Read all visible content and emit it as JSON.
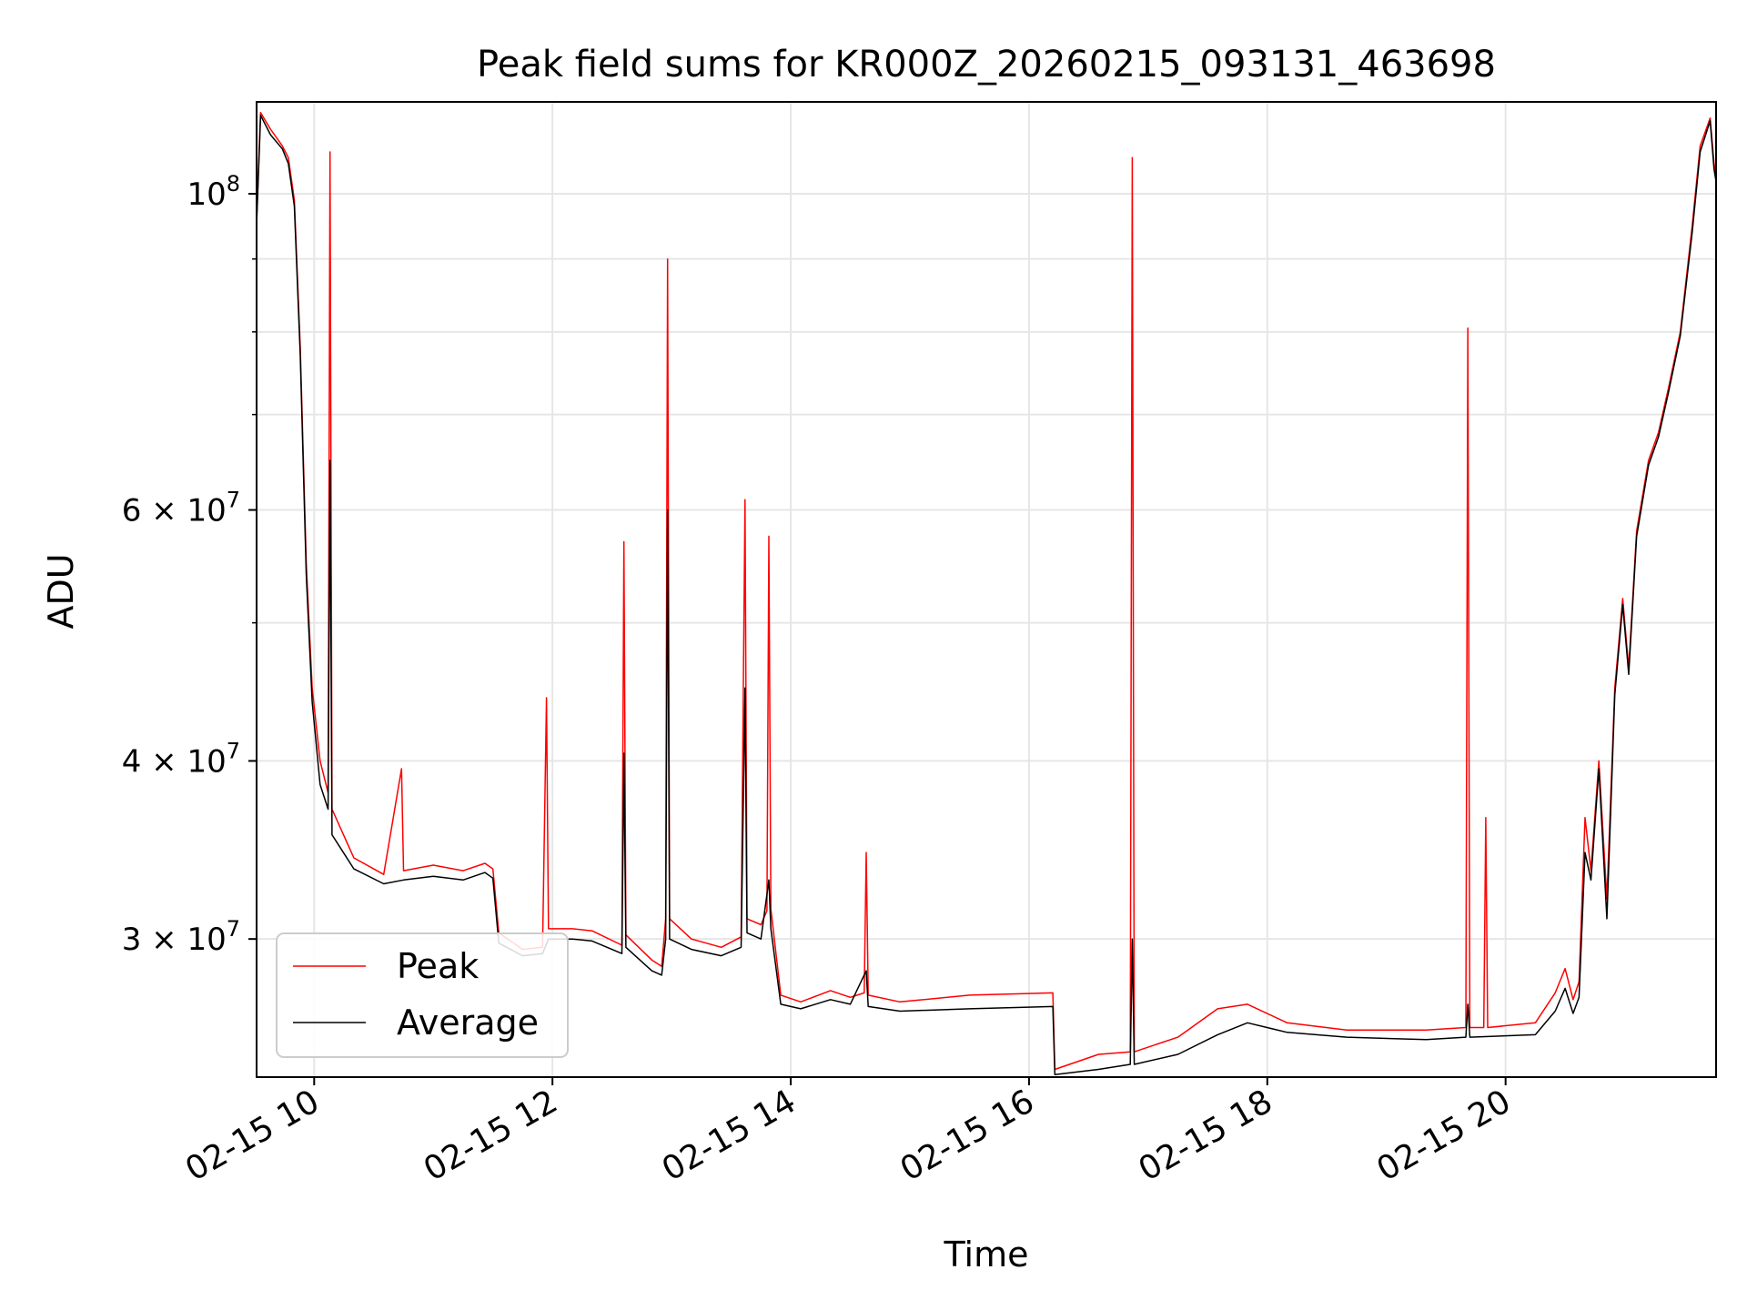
{
  "chart_data": {
    "type": "line",
    "title": "Peak field sums for KR000Z_20260215_093131_463698",
    "xlabel": "Time",
    "ylabel": "ADU",
    "y_scale": "log",
    "ylim": [
      24000000,
      116000000
    ],
    "xlim": [
      "2026-02-15T09:31",
      "2026-02-15T21:46"
    ],
    "grid": true,
    "legend_position": "lower-left",
    "x_ticks": [
      {
        "t": "2026-02-15T10:00",
        "label": "02-15 10"
      },
      {
        "t": "2026-02-15T12:00",
        "label": "02-15 12"
      },
      {
        "t": "2026-02-15T14:00",
        "label": "02-15 14"
      },
      {
        "t": "2026-02-15T16:00",
        "label": "02-15 16"
      },
      {
        "t": "2026-02-15T18:00",
        "label": "02-15 18"
      },
      {
        "t": "2026-02-15T20:00",
        "label": "02-15 20"
      }
    ],
    "y_major_ticks": [
      {
        "v": 30000000,
        "label": "3 × 10⁷",
        "mantissa": "3",
        "exp": "7"
      },
      {
        "v": 40000000,
        "label": "4 × 10⁷",
        "mantissa": "4",
        "exp": "7"
      },
      {
        "v": 60000000,
        "label": "6 × 10⁷",
        "mantissa": "6",
        "exp": "7"
      },
      {
        "v": 100000000,
        "label": "10⁸",
        "mantissa": "",
        "exp": "8"
      }
    ],
    "y_minor_grid": [
      50000000,
      70000000,
      80000000,
      90000000
    ],
    "series": [
      {
        "name": "Peak",
        "color": "#ff0000",
        "points": [
          [
            "2026-02-15T09:31",
            96000000
          ],
          [
            "2026-02-15T09:33",
            114000000
          ],
          [
            "2026-02-15T09:38",
            111000000
          ],
          [
            "2026-02-15T09:44",
            108000000
          ],
          [
            "2026-02-15T09:47",
            106000000
          ],
          [
            "2026-02-15T09:50",
            99000000
          ],
          [
            "2026-02-15T09:53",
            78000000
          ],
          [
            "2026-02-15T09:56",
            55000000
          ],
          [
            "2026-02-15T09:59",
            45000000
          ],
          [
            "2026-02-15T10:03",
            40000000
          ],
          [
            "2026-02-15T10:07",
            38000000
          ],
          [
            "2026-02-15T10:08",
            107000000
          ],
          [
            "2026-02-15T10:09",
            37000000
          ],
          [
            "2026-02-15T10:20",
            34200000
          ],
          [
            "2026-02-15T10:35",
            33300000
          ],
          [
            "2026-02-15T10:44",
            39500000
          ],
          [
            "2026-02-15T10:45",
            33500000
          ],
          [
            "2026-02-15T11:00",
            33800000
          ],
          [
            "2026-02-15T11:15",
            33500000
          ],
          [
            "2026-02-15T11:26",
            33900000
          ],
          [
            "2026-02-15T11:30",
            33600000
          ],
          [
            "2026-02-15T11:33",
            30300000
          ],
          [
            "2026-02-15T11:45",
            29500000
          ],
          [
            "2026-02-15T11:55",
            29600000
          ],
          [
            "2026-02-15T11:57",
            44300000
          ],
          [
            "2026-02-15T11:58",
            30500000
          ],
          [
            "2026-02-15T12:10",
            30500000
          ],
          [
            "2026-02-15T12:20",
            30400000
          ],
          [
            "2026-02-15T12:35",
            29700000
          ],
          [
            "2026-02-15T12:36",
            57000000
          ],
          [
            "2026-02-15T12:37",
            30200000
          ],
          [
            "2026-02-15T12:50",
            29000000
          ],
          [
            "2026-02-15T12:55",
            28700000
          ],
          [
            "2026-02-15T12:57",
            31000000
          ],
          [
            "2026-02-15T12:58",
            90000000
          ],
          [
            "2026-02-15T12:59",
            31000000
          ],
          [
            "2026-02-15T13:10",
            30000000
          ],
          [
            "2026-02-15T13:25",
            29600000
          ],
          [
            "2026-02-15T13:35",
            30100000
          ],
          [
            "2026-02-15T13:37",
            61000000
          ],
          [
            "2026-02-15T13:38",
            31000000
          ],
          [
            "2026-02-15T13:45",
            30700000
          ],
          [
            "2026-02-15T13:48",
            31400000
          ],
          [
            "2026-02-15T13:49",
            57500000
          ],
          [
            "2026-02-15T13:50",
            31500000
          ],
          [
            "2026-02-15T13:55",
            27400000
          ],
          [
            "2026-02-15T14:05",
            27100000
          ],
          [
            "2026-02-15T14:20",
            27600000
          ],
          [
            "2026-02-15T14:30",
            27300000
          ],
          [
            "2026-02-15T14:37",
            27500000
          ],
          [
            "2026-02-15T14:38",
            34500000
          ],
          [
            "2026-02-15T14:39",
            27400000
          ],
          [
            "2026-02-15T14:55",
            27100000
          ],
          [
            "2026-02-15T15:30",
            27400000
          ],
          [
            "2026-02-15T16:12",
            27500000
          ],
          [
            "2026-02-15T16:13",
            24300000
          ],
          [
            "2026-02-15T16:35",
            24900000
          ],
          [
            "2026-02-15T16:51",
            25000000
          ],
          [
            "2026-02-15T16:52",
            106000000
          ],
          [
            "2026-02-15T16:53",
            25000000
          ],
          [
            "2026-02-15T17:15",
            25600000
          ],
          [
            "2026-02-15T17:35",
            26800000
          ],
          [
            "2026-02-15T17:50",
            27000000
          ],
          [
            "2026-02-15T18:10",
            26200000
          ],
          [
            "2026-02-15T18:40",
            25900000
          ],
          [
            "2026-02-15T19:20",
            25900000
          ],
          [
            "2026-02-15T19:40",
            26000000
          ],
          [
            "2026-02-15T19:41",
            80500000
          ],
          [
            "2026-02-15T19:42",
            26000000
          ],
          [
            "2026-02-15T19:49",
            26000000
          ],
          [
            "2026-02-15T19:50",
            36500000
          ],
          [
            "2026-02-15T19:51",
            26000000
          ],
          [
            "2026-02-15T20:15",
            26200000
          ],
          [
            "2026-02-15T20:25",
            27500000
          ],
          [
            "2026-02-15T20:30",
            28600000
          ],
          [
            "2026-02-15T20:34",
            27200000
          ],
          [
            "2026-02-15T20:37",
            28000000
          ],
          [
            "2026-02-15T20:40",
            36500000
          ],
          [
            "2026-02-15T20:43",
            33500000
          ],
          [
            "2026-02-15T20:47",
            40000000
          ],
          [
            "2026-02-15T20:51",
            32000000
          ],
          [
            "2026-02-15T20:55",
            45000000
          ],
          [
            "2026-02-15T20:59",
            52000000
          ],
          [
            "2026-02-15T21:02",
            46500000
          ],
          [
            "2026-02-15T21:06",
            58000000
          ],
          [
            "2026-02-15T21:12",
            65000000
          ],
          [
            "2026-02-15T21:17",
            68000000
          ],
          [
            "2026-02-15T21:22",
            73000000
          ],
          [
            "2026-02-15T21:28",
            80000000
          ],
          [
            "2026-02-15T21:34",
            95000000
          ],
          [
            "2026-02-15T21:38",
            108000000
          ],
          [
            "2026-02-15T21:43",
            113000000
          ],
          [
            "2026-02-15T21:45",
            105000000
          ],
          [
            "2026-02-15T21:46",
            103000000
          ]
        ]
      },
      {
        "name": "Average",
        "color": "#000000",
        "points": [
          [
            "2026-02-15T09:31",
            95000000
          ],
          [
            "2026-02-15T09:33",
            113500000
          ],
          [
            "2026-02-15T09:38",
            110000000
          ],
          [
            "2026-02-15T09:44",
            107500000
          ],
          [
            "2026-02-15T09:47",
            105000000
          ],
          [
            "2026-02-15T09:50",
            98000000
          ],
          [
            "2026-02-15T09:53",
            77000000
          ],
          [
            "2026-02-15T09:56",
            54000000
          ],
          [
            "2026-02-15T09:59",
            44000000
          ],
          [
            "2026-02-15T10:03",
            38500000
          ],
          [
            "2026-02-15T10:07",
            37000000
          ],
          [
            "2026-02-15T10:08",
            65000000
          ],
          [
            "2026-02-15T10:09",
            35500000
          ],
          [
            "2026-02-15T10:20",
            33600000
          ],
          [
            "2026-02-15T10:35",
            32800000
          ],
          [
            "2026-02-15T10:45",
            33000000
          ],
          [
            "2026-02-15T11:00",
            33200000
          ],
          [
            "2026-02-15T11:15",
            33000000
          ],
          [
            "2026-02-15T11:26",
            33400000
          ],
          [
            "2026-02-15T11:30",
            33100000
          ],
          [
            "2026-02-15T11:33",
            29800000
          ],
          [
            "2026-02-15T11:45",
            29200000
          ],
          [
            "2026-02-15T11:55",
            29300000
          ],
          [
            "2026-02-15T11:58",
            30000000
          ],
          [
            "2026-02-15T12:10",
            30000000
          ],
          [
            "2026-02-15T12:20",
            29900000
          ],
          [
            "2026-02-15T12:35",
            29300000
          ],
          [
            "2026-02-15T12:36",
            40500000
          ],
          [
            "2026-02-15T12:37",
            29600000
          ],
          [
            "2026-02-15T12:50",
            28500000
          ],
          [
            "2026-02-15T12:55",
            28300000
          ],
          [
            "2026-02-15T12:57",
            30000000
          ],
          [
            "2026-02-15T12:58",
            60000000
          ],
          [
            "2026-02-15T12:59",
            30000000
          ],
          [
            "2026-02-15T13:10",
            29500000
          ],
          [
            "2026-02-15T13:25",
            29200000
          ],
          [
            "2026-02-15T13:35",
            29600000
          ],
          [
            "2026-02-15T13:37",
            45000000
          ],
          [
            "2026-02-15T13:38",
            30300000
          ],
          [
            "2026-02-15T13:45",
            30000000
          ],
          [
            "2026-02-15T13:49",
            33000000
          ],
          [
            "2026-02-15T13:50",
            30500000
          ],
          [
            "2026-02-15T13:55",
            27000000
          ],
          [
            "2026-02-15T14:05",
            26800000
          ],
          [
            "2026-02-15T14:20",
            27200000
          ],
          [
            "2026-02-15T14:30",
            27000000
          ],
          [
            "2026-02-15T14:38",
            28500000
          ],
          [
            "2026-02-15T14:39",
            26900000
          ],
          [
            "2026-02-15T14:55",
            26700000
          ],
          [
            "2026-02-15T15:30",
            26800000
          ],
          [
            "2026-02-15T16:12",
            26900000
          ],
          [
            "2026-02-15T16:13",
            24100000
          ],
          [
            "2026-02-15T16:35",
            24300000
          ],
          [
            "2026-02-15T16:51",
            24500000
          ],
          [
            "2026-02-15T16:52",
            30000000
          ],
          [
            "2026-02-15T16:53",
            24500000
          ],
          [
            "2026-02-15T17:15",
            24900000
          ],
          [
            "2026-02-15T17:35",
            25700000
          ],
          [
            "2026-02-15T17:50",
            26200000
          ],
          [
            "2026-02-15T18:10",
            25800000
          ],
          [
            "2026-02-15T18:40",
            25600000
          ],
          [
            "2026-02-15T19:20",
            25500000
          ],
          [
            "2026-02-15T19:40",
            25600000
          ],
          [
            "2026-02-15T19:41",
            27000000
          ],
          [
            "2026-02-15T19:42",
            25600000
          ],
          [
            "2026-02-15T20:15",
            25700000
          ],
          [
            "2026-02-15T20:25",
            26700000
          ],
          [
            "2026-02-15T20:30",
            27700000
          ],
          [
            "2026-02-15T20:34",
            26600000
          ],
          [
            "2026-02-15T20:37",
            27300000
          ],
          [
            "2026-02-15T20:40",
            34500000
          ],
          [
            "2026-02-15T20:43",
            33000000
          ],
          [
            "2026-02-15T20:47",
            39500000
          ],
          [
            "2026-02-15T20:51",
            31000000
          ],
          [
            "2026-02-15T20:55",
            44500000
          ],
          [
            "2026-02-15T20:59",
            51500000
          ],
          [
            "2026-02-15T21:02",
            46000000
          ],
          [
            "2026-02-15T21:06",
            57500000
          ],
          [
            "2026-02-15T21:12",
            64500000
          ],
          [
            "2026-02-15T21:17",
            67500000
          ],
          [
            "2026-02-15T21:22",
            72500000
          ],
          [
            "2026-02-15T21:28",
            79500000
          ],
          [
            "2026-02-15T21:34",
            94000000
          ],
          [
            "2026-02-15T21:38",
            107000000
          ],
          [
            "2026-02-15T21:43",
            112500000
          ],
          [
            "2026-02-15T21:45",
            104000000
          ],
          [
            "2026-02-15T21:46",
            102000000
          ]
        ]
      }
    ]
  }
}
